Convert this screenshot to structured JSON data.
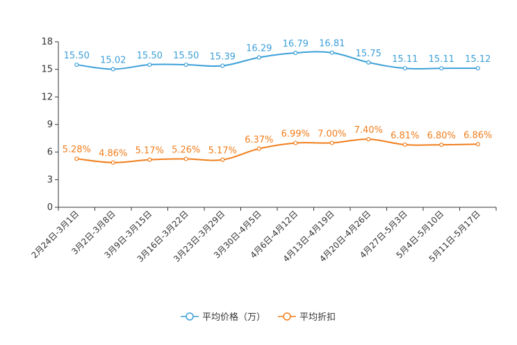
{
  "chart_data": {
    "type": "line",
    "categories": [
      "2月24日-3月1日",
      "3月2日-3月8日",
      "3月9日-3月15日",
      "3月16日-3月22日",
      "3月23日-3月29日",
      "3月30日-4月5日",
      "4月6日-4月12日",
      "4月13日-4月19日",
      "4月20日-4月26日",
      "4月27日-5月3日",
      "5月4日-5月10日",
      "5月11日-5月17日"
    ],
    "ylim": [
      0,
      18
    ],
    "yticks": [
      0,
      3,
      6,
      9,
      12,
      15,
      18
    ],
    "series": [
      {
        "name": "平均价格（万）",
        "color": "#3b9fd8",
        "values": [
          15.5,
          15.02,
          15.5,
          15.5,
          15.39,
          16.29,
          16.79,
          16.81,
          15.75,
          15.11,
          15.11,
          15.12
        ],
        "labels": [
          "15.50",
          "15.02",
          "15.50",
          "15.50",
          "15.39",
          "16.29",
          "16.79",
          "16.81",
          "15.75",
          "15.11",
          "15.11",
          "15.12"
        ]
      },
      {
        "name": "平均折扣",
        "color": "#f07d1a",
        "values": [
          5.28,
          4.86,
          5.17,
          5.26,
          5.17,
          6.37,
          6.99,
          7.0,
          7.4,
          6.81,
          6.8,
          6.86
        ],
        "labels": [
          "5.28%",
          "4.86%",
          "5.17%",
          "5.26%",
          "5.17%",
          "6.37%",
          "6.99%",
          "7.00%",
          "7.40%",
          "6.81%",
          "6.80%",
          "6.86%"
        ]
      }
    ],
    "legend_position": "bottom-center",
    "grid": false
  }
}
